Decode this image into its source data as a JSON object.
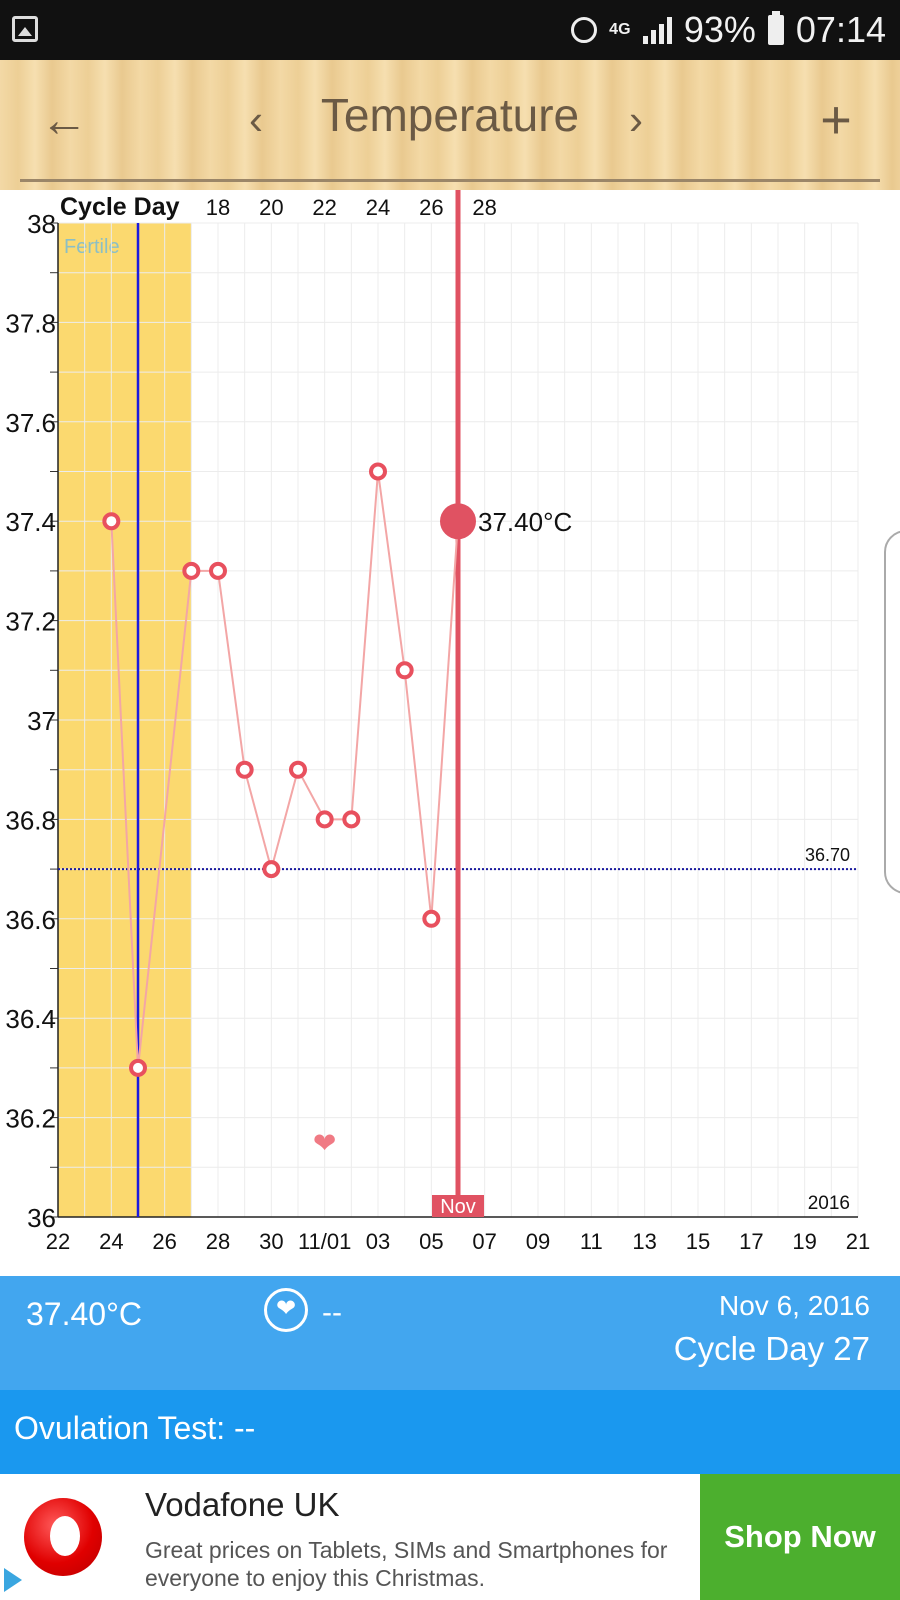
{
  "status_bar": {
    "network": "4G",
    "battery": "93%",
    "time": "07:14"
  },
  "header": {
    "title": "Temperature",
    "back_icon": "arrow-left-icon",
    "prev_icon": "chevron-left-icon",
    "next_icon": "chevron-right-icon",
    "add_icon": "plus-icon"
  },
  "chart_data": {
    "type": "line",
    "title": "",
    "cycle_day_label": "Cycle Day",
    "cycle_day_ticks": [
      "18",
      "20",
      "22",
      "24",
      "26",
      "28"
    ],
    "x_ticks": [
      "22",
      "24",
      "26",
      "28",
      "30",
      "11/01",
      "03",
      "05",
      "07",
      "09",
      "11",
      "13",
      "15",
      "17",
      "19",
      "21"
    ],
    "y_ticks": [
      "38",
      "37.8",
      "37.6",
      "37.4",
      "37.2",
      "37",
      "36.8",
      "36.6",
      "36.4",
      "36.2",
      "36"
    ],
    "ylim": [
      36,
      38
    ],
    "grid": true,
    "fertile_label": "Fertile",
    "fertile_window": [
      "Oct 22",
      "Oct 27"
    ],
    "ovulation_line": "Oct 25",
    "coverline": {
      "value": 36.7,
      "label": "36.70"
    },
    "points": [
      {
        "date": "Oct 24",
        "temp": 37.4
      },
      {
        "date": "Oct 25",
        "temp": 36.3
      },
      {
        "date": "Oct 27",
        "temp": 37.3
      },
      {
        "date": "Oct 28",
        "temp": 37.3
      },
      {
        "date": "Oct 29",
        "temp": 36.9
      },
      {
        "date": "Oct 30",
        "temp": 36.7
      },
      {
        "date": "Oct 31",
        "temp": 36.9
      },
      {
        "date": "Nov 01",
        "temp": 36.8
      },
      {
        "date": "Nov 02",
        "temp": 36.8
      },
      {
        "date": "Nov 03",
        "temp": 37.5
      },
      {
        "date": "Nov 04",
        "temp": 37.1
      },
      {
        "date": "Nov 05",
        "temp": 36.6
      },
      {
        "date": "Nov 06",
        "temp": 37.4
      }
    ],
    "selected": {
      "date": "Nov 06",
      "temp": 37.4,
      "label": "37.40°C"
    },
    "intercourse_marker_date": "Nov 01",
    "month_label": "Nov",
    "year_label": "2016",
    "colors": {
      "line": "#f3a6a6",
      "point": "#e8505e",
      "selected": "#e05262",
      "fertile": "#fbd96f",
      "ovulation": "#1a1adf",
      "coverline": "#1a1a9f"
    }
  },
  "info": {
    "temperature": "37.40°C",
    "intercourse": "--",
    "date": "Nov 6, 2016",
    "cycle_day": "Cycle Day 27"
  },
  "ovulation": {
    "label": "Ovulation Test: --"
  },
  "ad": {
    "title": "Vodafone UK",
    "text": "Great prices on Tablets, SIMs and Smartphones for everyone to enjoy this Christmas.",
    "cta": "Shop Now"
  }
}
